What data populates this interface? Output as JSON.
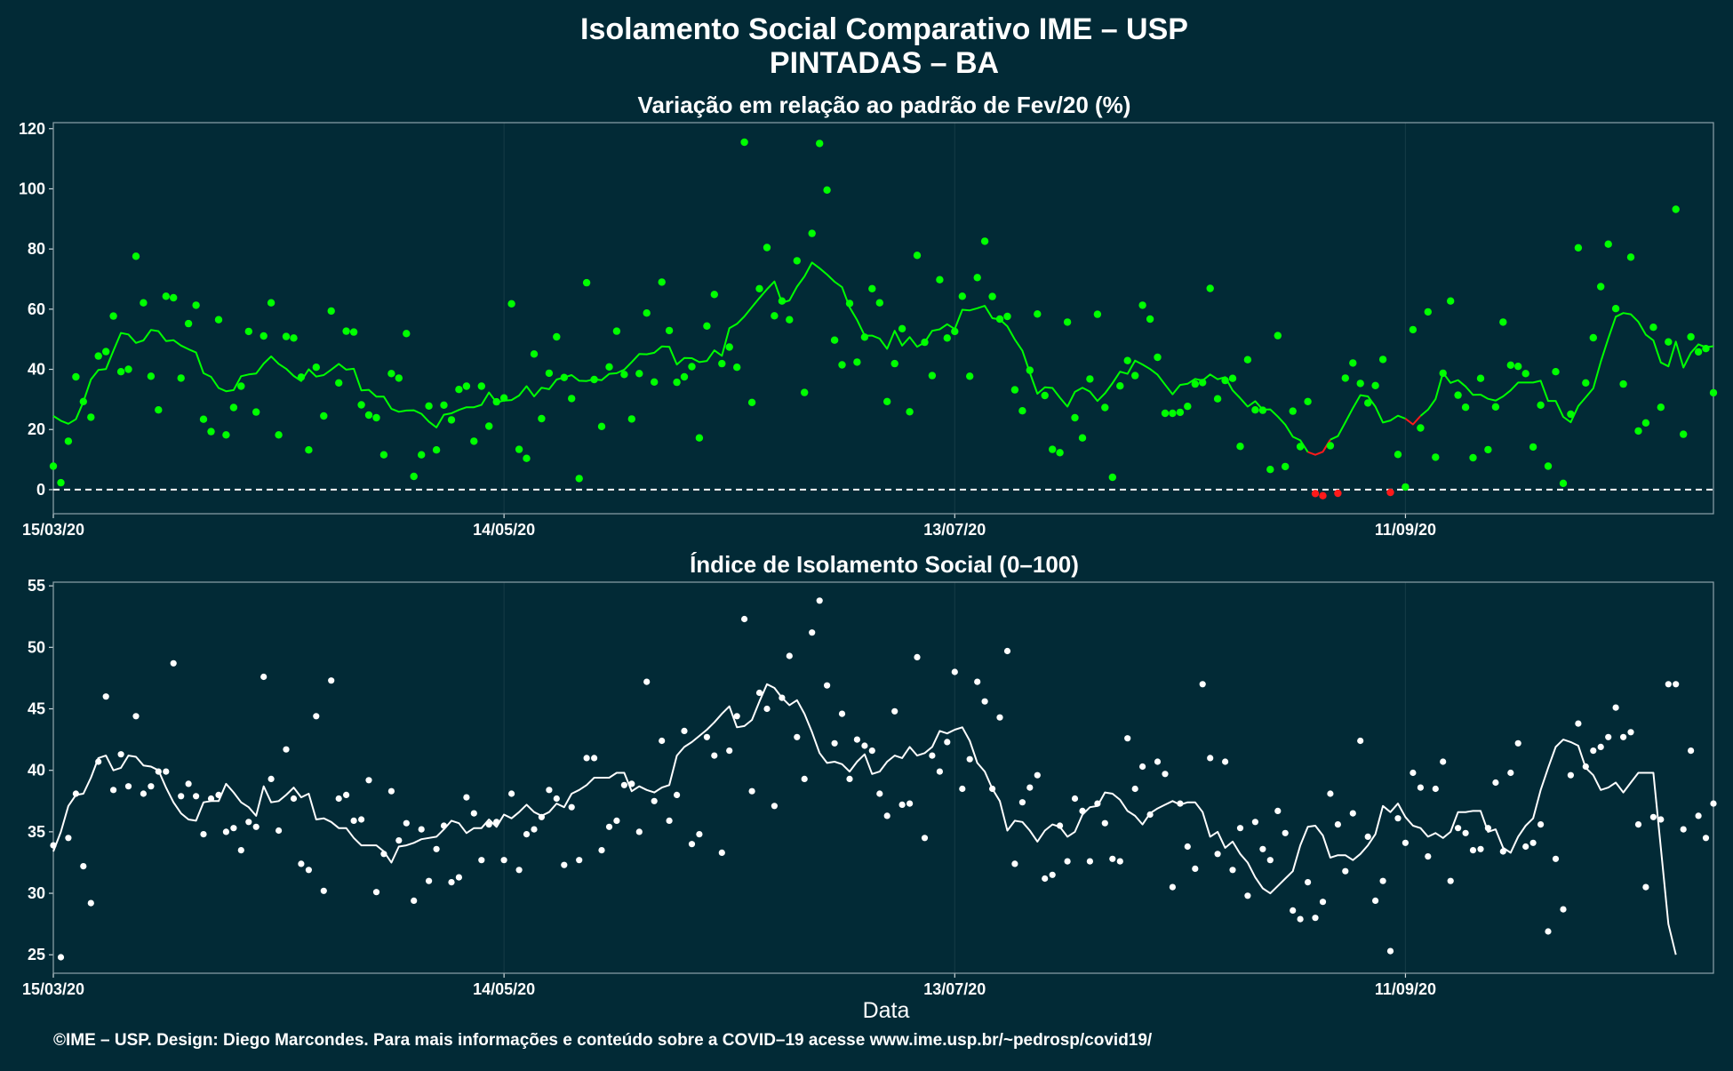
{
  "title_line1": "Isolamento Social Comparativo IME – USP",
  "title_line2": "PINTADAS – BA",
  "xlabel": "Data",
  "footer": "©IME – USP. Design: Diego Marcondes. Para mais informações e conteúdo sobre a COVID–19 acesse www.ime.usp.br/~pedrosp/covid19/",
  "colors": {
    "background": "#022a36",
    "variation_series": "#00ff00",
    "negative_series": "#ff1a1a",
    "index_series": "#ffffff",
    "reference_line": "#ffffff"
  },
  "chart_data": [
    {
      "type": "scatter",
      "title": "Variação em relação ao padrão de Fev/20 (%)",
      "xlabel": "",
      "ylabel": "",
      "x_start": "15/03/20",
      "x_end": "11/10/20",
      "x_ticks": [
        "15/03/20",
        "14/05/20",
        "13/07/20",
        "11/09/20"
      ],
      "ylim": [
        -8,
        122
      ],
      "y_ticks": [
        0,
        20,
        40,
        60,
        80,
        100,
        120
      ],
      "reference_line": 0,
      "grid": true,
      "points": [
        7.8,
        2.3,
        16.1,
        37.5,
        29.3,
        24.1,
        44.4,
        45.9,
        57.7,
        39.2,
        40.0,
        77.6,
        62.1,
        37.7,
        26.5,
        64.3,
        63.8,
        37.1,
        55.2,
        61.3,
        23.4,
        19.3,
        56.5,
        18.2,
        27.3,
        34.4,
        52.6,
        25.8,
        51.1,
        62.1,
        18.2,
        50.9,
        50.4,
        37.4,
        13.2,
        40.7,
        24.5,
        59.4,
        35.5,
        52.7,
        52.4,
        28.2,
        24.8,
        23.9,
        11.6,
        38.6,
        37.1,
        51.9,
        4.4,
        11.6,
        27.8,
        13.2,
        28.1,
        23.2,
        33.3,
        34.4,
        16.1,
        34.4,
        21.1,
        29.2,
        30.5,
        61.8,
        13.4,
        10.4,
        45.1,
        23.6,
        38.7,
        50.8,
        37.3,
        30.3,
        3.7,
        68.8,
        36.6,
        21.0,
        40.8,
        52.7,
        38.3,
        23.5,
        38.6,
        58.7,
        35.8,
        69.0,
        52.9,
        35.7,
        37.5,
        40.9,
        17.2,
        54.4,
        64.9,
        41.9,
        47.4,
        40.7,
        115.5,
        29.0,
        66.8,
        80.5,
        57.8,
        62.7,
        56.5,
        76.1,
        32.3,
        85.2,
        115.1,
        99.6,
        49.7,
        41.5,
        61.9,
        42.4,
        50.7,
        66.8,
        62.1,
        29.3,
        41.9,
        53.5,
        25.9,
        77.9,
        49.0,
        37.9,
        69.8,
        50.4,
        52.6,
        64.3,
        37.7,
        70.5,
        82.6,
        64.2,
        56.7,
        57.6,
        33.2,
        26.2,
        39.7,
        58.4,
        31.3,
        13.4,
        12.3,
        55.7,
        23.9,
        17.2,
        36.8,
        58.3,
        27.3,
        4.1,
        34.5,
        42.9,
        37.9,
        61.3,
        56.7,
        44.0,
        25.4,
        25.4,
        25.7,
        27.7,
        35.1,
        35.6,
        66.9,
        30.2,
        36.3,
        37.0,
        14.4,
        43.2,
        26.5,
        26.4,
        6.7,
        51.2,
        7.7,
        26.1,
        14.3,
        29.3,
        -1.3,
        -2.0,
        14.6,
        -1.2,
        37.1,
        42.1,
        35.3,
        28.8,
        34.6,
        43.3,
        -0.9,
        11.7,
        0.9,
        53.2,
        20.5,
        59.1,
        10.8,
        38.7,
        62.7,
        31.4,
        27.4,
        10.6,
        37.0,
        13.3,
        27.5,
        55.7,
        41.4,
        41.0,
        38.6,
        14.2,
        28.1,
        7.8,
        39.2,
        2.1,
        25.1,
        80.4,
        35.5,
        50.5,
        67.5,
        81.6,
        60.2,
        35.1,
        77.3,
        19.5,
        22.2,
        54.0,
        27.4,
        49.1,
        93.2,
        18.4,
        50.8,
        45.8,
        46.9,
        32.2
      ],
      "moving_average": [
        24.5,
        22.9,
        21.9,
        23.4,
        29.2,
        36.6,
        39.8,
        40.1,
        46.2,
        52.1,
        51.6,
        48.8,
        49.6,
        53.1,
        52.7,
        49.4,
        49.7,
        47.9,
        46.7,
        45.6,
        38.7,
        37.5,
        33.8,
        32.7,
        33.1,
        37.7,
        38.3,
        38.6,
        41.9,
        44.3,
        41.8,
        40.2,
        37.8,
        36.1,
        40.0,
        37.6,
        38.1,
        39.9,
        41.8,
        39.9,
        40.2,
        33.0,
        33.2,
        30.9,
        30.9,
        26.9,
        25.9,
        26.3,
        26.4,
        25.2,
        22.6,
        20.7,
        24.9,
        25.4,
        26.5,
        27.4,
        27.4,
        28.2,
        32.3,
        29.0,
        29.6,
        29.8,
        31.3,
        34.4,
        31.0,
        33.9,
        33.4,
        36.6,
        37.3,
        38.1,
        36.2,
        36.1,
        36.7,
        36.4,
        38.5,
        38.7,
        39.9,
        42.4,
        45.1,
        45.0,
        45.5,
        47.6,
        47.5,
        41.6,
        43.8,
        43.7,
        42.4,
        42.8,
        46.3,
        44.5,
        53.7,
        55.1,
        57.6,
        60.7,
        63.7,
        66.6,
        69.2,
        62.1,
        62.9,
        67.5,
        70.9,
        75.5,
        73.6,
        71.5,
        69.1,
        67.3,
        60.6,
        56.4,
        51.2,
        51.2,
        50.2,
        46.8,
        52.8,
        47.9,
        50.7,
        47.5,
        49.0,
        52.8,
        53.3,
        55.0,
        53.4,
        59.8,
        59.6,
        60.3,
        61.1,
        57.0,
        56.6,
        54.3,
        49.9,
        46.2,
        38.9,
        31.9,
        34.0,
        33.8,
        30.6,
        27.6,
        32.5,
        33.9,
        32.6,
        29.5,
        32.0,
        35.4,
        39.2,
        38.5,
        42.9,
        41.6,
        40.1,
        38.2,
        34.9,
        31.7,
        34.8,
        35.2,
        36.8,
        36.3,
        38.3,
        36.7,
        37.4,
        33.0,
        30.4,
        27.6,
        29.4,
        26.6,
        26.7,
        24.3,
        21.6,
        17.6,
        16.4,
        12.5,
        11.6,
        12.6,
        16.6,
        17.8,
        22.4,
        27.1,
        31.4,
        31.0,
        27.6,
        22.3,
        23.0,
        24.6,
        23.6,
        21.7,
        24.5,
        26.6,
        30.1,
        38.9,
        35.5,
        36.4,
        34.3,
        31.5,
        31.6,
        30.2,
        29.6,
        31.0,
        33.0,
        35.6,
        35.6,
        35.6,
        36.2,
        29.5,
        29.5,
        24.2,
        22.4,
        27.8,
        30.7,
        33.7,
        42.5,
        50.3,
        57.5,
        58.7,
        58.3,
        55.8,
        51.5,
        49.6,
        42.3,
        41.0,
        49.2,
        40.6,
        45.5,
        48.3,
        47.3,
        47.7
      ]
    },
    {
      "type": "scatter",
      "title": "Índice de Isolamento Social (0–100)",
      "xlabel": "Data",
      "ylabel": "",
      "x_start": "15/03/20",
      "x_end": "11/10/20",
      "x_ticks": [
        "15/03/20",
        "14/05/20",
        "13/07/20",
        "11/09/20"
      ],
      "ylim": [
        23.5,
        55.3
      ],
      "y_ticks": [
        25,
        30,
        35,
        40,
        45,
        50,
        55
      ],
      "grid": true,
      "points": [
        33.9,
        24.8,
        34.5,
        38.1,
        32.2,
        29.2,
        40.7,
        46.0,
        38.4,
        41.3,
        38.7,
        44.4,
        38.1,
        38.7,
        39.9,
        39.9,
        48.7,
        37.9,
        38.9,
        37.9,
        34.8,
        37.7,
        38.0,
        35.0,
        35.3,
        33.5,
        35.8,
        35.4,
        47.6,
        39.3,
        35.1,
        41.7,
        37.7,
        32.4,
        31.9,
        44.4,
        30.2,
        47.3,
        37.7,
        38.0,
        35.9,
        36.0,
        39.2,
        30.1,
        33.2,
        38.3,
        34.3,
        35.7,
        29.4,
        35.2,
        31.0,
        33.6,
        35.5,
        30.9,
        31.3,
        37.8,
        36.5,
        32.7,
        35.6,
        35.8,
        32.7,
        38.1,
        31.9,
        34.8,
        35.2,
        36.2,
        38.4,
        37.7,
        32.3,
        37.0,
        32.7,
        41.0,
        41.0,
        33.5,
        35.4,
        35.9,
        38.8,
        38.9,
        35.0,
        47.2,
        37.5,
        42.4,
        35.9,
        38.0,
        43.2,
        34.0,
        34.8,
        42.7,
        41.2,
        33.3,
        41.6,
        44.4,
        52.3,
        38.3,
        46.3,
        45.0,
        37.1,
        45.9,
        49.3,
        42.7,
        39.3,
        51.2,
        53.8,
        46.9,
        42.2,
        44.6,
        39.3,
        42.5,
        42.0,
        41.6,
        38.1,
        36.3,
        44.8,
        37.2,
        37.3,
        49.2,
        34.5,
        41.2,
        39.9,
        42.3,
        48.0,
        38.5,
        40.9,
        47.2,
        45.6,
        38.5,
        44.3,
        49.7,
        32.4,
        37.4,
        38.6,
        39.6,
        31.2,
        31.5,
        35.5,
        32.6,
        37.7,
        36.7,
        32.6,
        37.3,
        35.7,
        32.8,
        32.6,
        42.6,
        38.5,
        40.3,
        36.4,
        40.7,
        39.7,
        30.5,
        37.3,
        33.8,
        32.0,
        47.0,
        41.0,
        33.2,
        40.7,
        31.9,
        35.3,
        29.8,
        35.8,
        33.6,
        32.7,
        36.7,
        34.9,
        28.6,
        27.9,
        30.9,
        28.0,
        29.3,
        38.1,
        35.6,
        31.8,
        36.5,
        42.4,
        34.6,
        29.4,
        31.0,
        25.3,
        36.1,
        34.1,
        39.8,
        38.6,
        33.0,
        38.5,
        40.7,
        31.0,
        35.3,
        34.9,
        33.5,
        33.6,
        35.3,
        39.0,
        33.4,
        39.8,
        42.2,
        33.8,
        34.1,
        35.6,
        26.9,
        32.8,
        28.7,
        39.6,
        43.8,
        40.3,
        41.6,
        41.9,
        42.7,
        45.1,
        42.7,
        43.1,
        35.6,
        30.5,
        36.2,
        36.0,
        47.0,
        47.0,
        35.2,
        41.6,
        36.3,
        34.5,
        37.3
      ],
      "moving_average": [
        33.4,
        35.0,
        37.1,
        38.0,
        38.1,
        39.4,
        41.0,
        41.2,
        40.0,
        40.2,
        41.2,
        41.1,
        40.4,
        40.3,
        40.0,
        38.6,
        37.4,
        36.5,
        36.0,
        35.9,
        37.4,
        37.5,
        37.5,
        38.9,
        38.2,
        37.4,
        37.0,
        36.3,
        38.7,
        37.4,
        37.5,
        38.0,
        38.6,
        37.8,
        38.1,
        36.0,
        36.1,
        35.8,
        35.3,
        35.3,
        34.5,
        33.9,
        33.9,
        33.9,
        33.4,
        32.5,
        33.8,
        33.9,
        34.1,
        34.4,
        34.5,
        34.6,
        35.2,
        35.9,
        35.7,
        34.9,
        35.3,
        35.3,
        36.0,
        35.4,
        36.4,
        36.1,
        36.6,
        37.2,
        36.6,
        36.3,
        36.6,
        37.3,
        37.0,
        38.1,
        38.4,
        38.8,
        39.4,
        39.4,
        39.4,
        39.8,
        39.8,
        38.3,
        38.7,
        38.4,
        38.2,
        38.6,
        38.8,
        41.2,
        41.9,
        42.3,
        42.8,
        43.3,
        43.9,
        44.6,
        45.2,
        43.5,
        43.6,
        44.1,
        45.6,
        47.0,
        46.7,
        45.9,
        45.3,
        45.7,
        44.6,
        43.1,
        41.4,
        40.6,
        40.7,
        40.5,
        39.9,
        40.7,
        41.3,
        39.7,
        39.9,
        40.7,
        41.2,
        41.0,
        41.9,
        41.2,
        41.4,
        41.9,
        43.2,
        43.0,
        43.3,
        43.5,
        42.4,
        40.6,
        39.9,
        38.5,
        37.5,
        35.1,
        35.9,
        35.8,
        35.1,
        34.2,
        35.1,
        35.6,
        35.4,
        34.6,
        35.0,
        36.4,
        37.0,
        37.1,
        38.2,
        38.1,
        37.6,
        36.7,
        36.3,
        35.6,
        36.5,
        36.9,
        37.2,
        37.5,
        37.2,
        37.4,
        37.4,
        36.6,
        34.6,
        35.0,
        33.7,
        34.2,
        33.2,
        32.5,
        31.3,
        30.4,
        30.0,
        30.6,
        31.2,
        31.8,
        33.9,
        35.4,
        35.5,
        34.7,
        32.9,
        33.1,
        33.1,
        32.7,
        33.2,
        33.9,
        34.8,
        37.1,
        36.6,
        37.3,
        36.2,
        35.5,
        35.3,
        34.6,
        34.9,
        34.5,
        35.0,
        36.6,
        36.6,
        36.7,
        36.7,
        35.0,
        35.2,
        33.7,
        33.3,
        34.6,
        35.5,
        36.1,
        38.4,
        40.2,
        41.9,
        42.5,
        42.3,
        42.0,
        40.2,
        39.6,
        38.4,
        38.6,
        39.0,
        38.2,
        39.0,
        39.8,
        39.8,
        39.8,
        33.7,
        27.5,
        25.0
      ]
    }
  ]
}
